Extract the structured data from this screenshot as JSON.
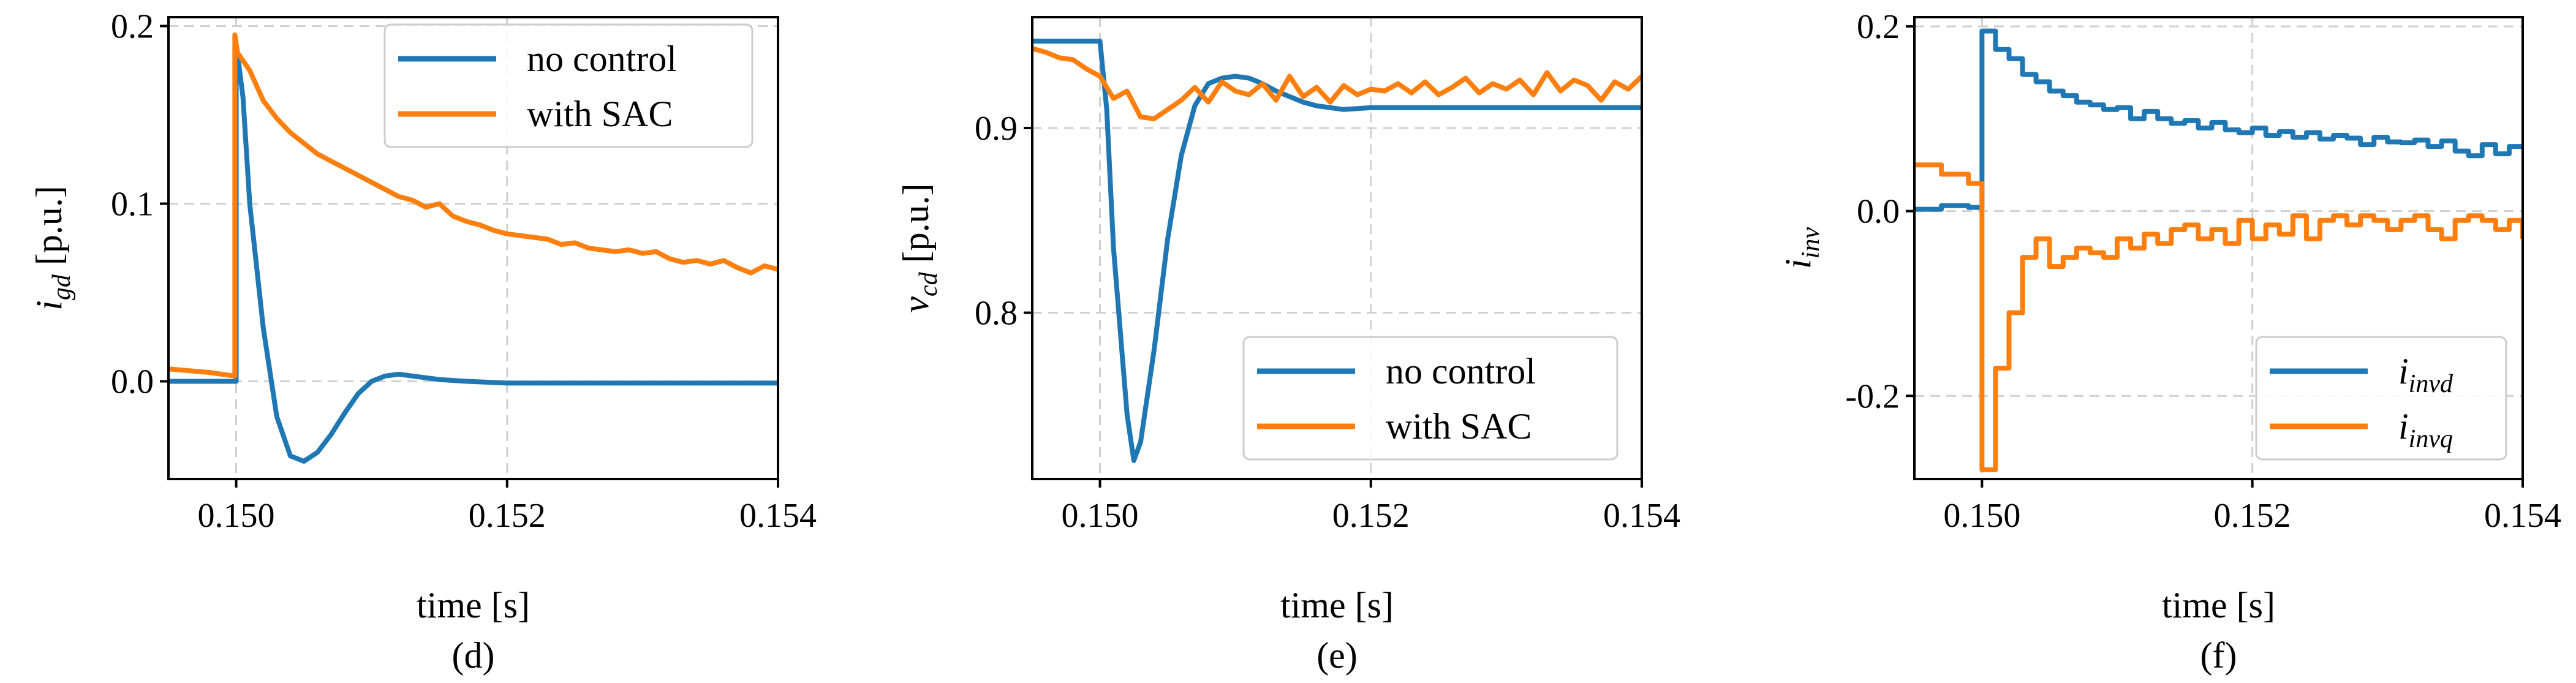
{
  "colors": {
    "blue": "#1f77b4",
    "orange": "#ff7f0e"
  },
  "chart_data": [
    {
      "id": "d",
      "type": "line",
      "caption": "(d)",
      "xlabel": "time [s]",
      "ylabel_main": "i",
      "ylabel_sub": "gd",
      "ylabel_unit": " [p.u.]",
      "xlim": [
        0.1495,
        0.154
      ],
      "ylim": [
        -0.055,
        0.205
      ],
      "xticks": [
        0.15,
        0.152,
        0.154
      ],
      "xtick_labels": [
        "0.150",
        "0.152",
        "0.154"
      ],
      "yticks": [
        0.0,
        0.1,
        0.2
      ],
      "ytick_labels": [
        "0.0",
        "0.1",
        "0.2"
      ],
      "grid": true,
      "legend_position": "top-right",
      "series": [
        {
          "name": "no control",
          "color": "#1f77b4",
          "step": false,
          "x": [
            0.1495,
            0.15,
            0.15,
            0.15005,
            0.1501,
            0.1502,
            0.1503,
            0.1504,
            0.1505,
            0.1506,
            0.1507,
            0.1508,
            0.1509,
            0.151,
            0.1511,
            0.1512,
            0.1513,
            0.1514,
            0.1515,
            0.1517,
            0.152,
            0.153,
            0.154
          ],
          "y": [
            0.0,
            0.0,
            0.19,
            0.16,
            0.1,
            0.03,
            -0.02,
            -0.042,
            -0.045,
            -0.04,
            -0.03,
            -0.018,
            -0.007,
            0.0,
            0.003,
            0.004,
            0.003,
            0.002,
            0.001,
            0.0,
            -0.001,
            -0.001,
            -0.001
          ]
        },
        {
          "name": "with SAC",
          "color": "#ff7f0e",
          "step": false,
          "x": [
            0.1495,
            0.1498,
            0.14999,
            0.14999,
            0.15001,
            0.1501,
            0.1502,
            0.1503,
            0.1504,
            0.1505,
            0.1506,
            0.1507,
            0.1508,
            0.1509,
            0.151,
            0.1511,
            0.1512,
            0.1513,
            0.1514,
            0.1515,
            0.1516,
            0.1517,
            0.1518,
            0.1519,
            0.152,
            0.1521,
            0.1522,
            0.1523,
            0.1524,
            0.1525,
            0.1526,
            0.1527,
            0.1528,
            0.1529,
            0.153,
            0.1531,
            0.1532,
            0.1533,
            0.1534,
            0.1535,
            0.1536,
            0.1537,
            0.1538,
            0.1539,
            0.154
          ],
          "y": [
            0.007,
            0.005,
            0.003,
            0.195,
            0.185,
            0.175,
            0.158,
            0.148,
            0.14,
            0.134,
            0.128,
            0.124,
            0.12,
            0.116,
            0.112,
            0.108,
            0.104,
            0.102,
            0.098,
            0.1,
            0.093,
            0.09,
            0.088,
            0.085,
            0.083,
            0.082,
            0.081,
            0.08,
            0.077,
            0.078,
            0.075,
            0.074,
            0.073,
            0.074,
            0.072,
            0.073,
            0.069,
            0.067,
            0.068,
            0.066,
            0.068,
            0.064,
            0.061,
            0.065,
            0.063
          ]
        }
      ]
    },
    {
      "id": "e",
      "type": "line",
      "caption": "(e)",
      "xlabel": "time [s]",
      "ylabel_main": "v",
      "ylabel_sub": "cd",
      "ylabel_unit": " [p.u.]",
      "xlim": [
        0.1495,
        0.154
      ],
      "ylim": [
        0.71,
        0.96
      ],
      "xticks": [
        0.15,
        0.152,
        0.154
      ],
      "xtick_labels": [
        "0.150",
        "0.152",
        "0.154"
      ],
      "yticks": [
        0.8,
        0.9
      ],
      "ytick_labels": [
        "0.8",
        "0.9"
      ],
      "grid": true,
      "legend_position": "bottom-right",
      "series": [
        {
          "name": "no control",
          "color": "#1f77b4",
          "step": false,
          "x": [
            0.1495,
            0.15,
            0.15005,
            0.1501,
            0.1502,
            0.15025,
            0.1503,
            0.1504,
            0.1505,
            0.1506,
            0.1507,
            0.1508,
            0.1509,
            0.151,
            0.1511,
            0.1512,
            0.1513,
            0.1514,
            0.1515,
            0.1516,
            0.1518,
            0.152,
            0.153,
            0.154
          ],
          "y": [
            0.947,
            0.947,
            0.91,
            0.835,
            0.745,
            0.72,
            0.73,
            0.78,
            0.84,
            0.885,
            0.912,
            0.924,
            0.927,
            0.928,
            0.927,
            0.924,
            0.92,
            0.917,
            0.914,
            0.912,
            0.91,
            0.911,
            0.911,
            0.911
          ]
        },
        {
          "name": "with SAC",
          "color": "#ff7f0e",
          "step": false,
          "x": [
            0.1495,
            0.1496,
            0.1497,
            0.1498,
            0.1499,
            0.15,
            0.1501,
            0.1502,
            0.1503,
            0.1504,
            0.1505,
            0.1506,
            0.1507,
            0.1508,
            0.1509,
            0.151,
            0.1511,
            0.1512,
            0.1513,
            0.1514,
            0.1515,
            0.1516,
            0.1517,
            0.1518,
            0.1519,
            0.152,
            0.1521,
            0.1522,
            0.1523,
            0.1524,
            0.1525,
            0.1526,
            0.1527,
            0.1528,
            0.1529,
            0.153,
            0.1531,
            0.1532,
            0.1533,
            0.1534,
            0.1535,
            0.1536,
            0.1537,
            0.1538,
            0.1539,
            0.154
          ],
          "y": [
            0.943,
            0.941,
            0.938,
            0.937,
            0.932,
            0.928,
            0.916,
            0.92,
            0.906,
            0.905,
            0.91,
            0.915,
            0.922,
            0.914,
            0.925,
            0.92,
            0.918,
            0.924,
            0.915,
            0.928,
            0.917,
            0.922,
            0.914,
            0.923,
            0.918,
            0.921,
            0.92,
            0.924,
            0.919,
            0.925,
            0.918,
            0.922,
            0.927,
            0.919,
            0.924,
            0.921,
            0.926,
            0.918,
            0.93,
            0.92,
            0.926,
            0.923,
            0.915,
            0.925,
            0.921,
            0.928
          ]
        }
      ]
    },
    {
      "id": "f",
      "type": "line",
      "caption": "(f)",
      "xlabel": "time [s]",
      "ylabel_main": "i",
      "ylabel_sub": "inv",
      "ylabel_unit": "",
      "xlim": [
        0.1495,
        0.154
      ],
      "ylim": [
        -0.29,
        0.21
      ],
      "xticks": [
        0.15,
        0.152,
        0.154
      ],
      "xtick_labels": [
        "0.150",
        "0.152",
        "0.154"
      ],
      "yticks": [
        -0.2,
        0.0,
        0.2
      ],
      "ytick_labels": [
        "-0.2",
        "0.0",
        "0.2"
      ],
      "grid": true,
      "legend_position": "bottom-right",
      "series": [
        {
          "name": "i_invd",
          "name_main": "i",
          "name_sub": "invd",
          "color": "#1f77b4",
          "step": true,
          "x": [
            0.1495,
            0.1497,
            0.1499,
            0.15,
            0.1501,
            0.1502,
            0.1503,
            0.1504,
            0.1505,
            0.1506,
            0.1507,
            0.1508,
            0.1509,
            0.151,
            0.1511,
            0.1512,
            0.1513,
            0.1514,
            0.1515,
            0.1516,
            0.1517,
            0.1518,
            0.1519,
            0.152,
            0.1521,
            0.1522,
            0.1523,
            0.1524,
            0.1525,
            0.1526,
            0.1527,
            0.1528,
            0.1529,
            0.153,
            0.1531,
            0.1532,
            0.1533,
            0.1534,
            0.1535,
            0.1536,
            0.1537,
            0.1538,
            0.1539,
            0.154
          ],
          "y": [
            0.002,
            0.006,
            0.004,
            0.195,
            0.175,
            0.165,
            0.148,
            0.14,
            0.13,
            0.125,
            0.118,
            0.115,
            0.11,
            0.112,
            0.1,
            0.108,
            0.1,
            0.095,
            0.098,
            0.09,
            0.096,
            0.088,
            0.085,
            0.09,
            0.082,
            0.086,
            0.08,
            0.085,
            0.078,
            0.082,
            0.079,
            0.072,
            0.08,
            0.075,
            0.074,
            0.077,
            0.07,
            0.076,
            0.065,
            0.06,
            0.072,
            0.062,
            0.07,
            0.068
          ]
        },
        {
          "name": "i_invq",
          "name_main": "i",
          "name_sub": "invq",
          "color": "#ff7f0e",
          "step": true,
          "x": [
            0.1495,
            0.1497,
            0.1499,
            0.15,
            0.1501,
            0.1502,
            0.1503,
            0.1504,
            0.1505,
            0.1506,
            0.1507,
            0.1508,
            0.1509,
            0.151,
            0.1511,
            0.1512,
            0.1513,
            0.1514,
            0.1515,
            0.1516,
            0.1517,
            0.1518,
            0.1519,
            0.152,
            0.1521,
            0.1522,
            0.1523,
            0.1524,
            0.1525,
            0.1526,
            0.1527,
            0.1528,
            0.1529,
            0.153,
            0.1531,
            0.1532,
            0.1533,
            0.1534,
            0.1535,
            0.1536,
            0.1537,
            0.1538,
            0.1539,
            0.154
          ],
          "y": [
            0.05,
            0.04,
            0.03,
            -0.28,
            -0.17,
            -0.11,
            -0.05,
            -0.03,
            -0.06,
            -0.05,
            -0.04,
            -0.045,
            -0.05,
            -0.03,
            -0.04,
            -0.025,
            -0.035,
            -0.02,
            -0.015,
            -0.03,
            -0.02,
            -0.035,
            -0.01,
            -0.03,
            -0.015,
            -0.025,
            -0.005,
            -0.03,
            -0.01,
            -0.005,
            -0.015,
            -0.005,
            -0.01,
            -0.02,
            -0.01,
            -0.005,
            -0.02,
            -0.03,
            -0.01,
            -0.005,
            -0.01,
            -0.02,
            -0.01,
            -0.03
          ]
        }
      ]
    }
  ]
}
